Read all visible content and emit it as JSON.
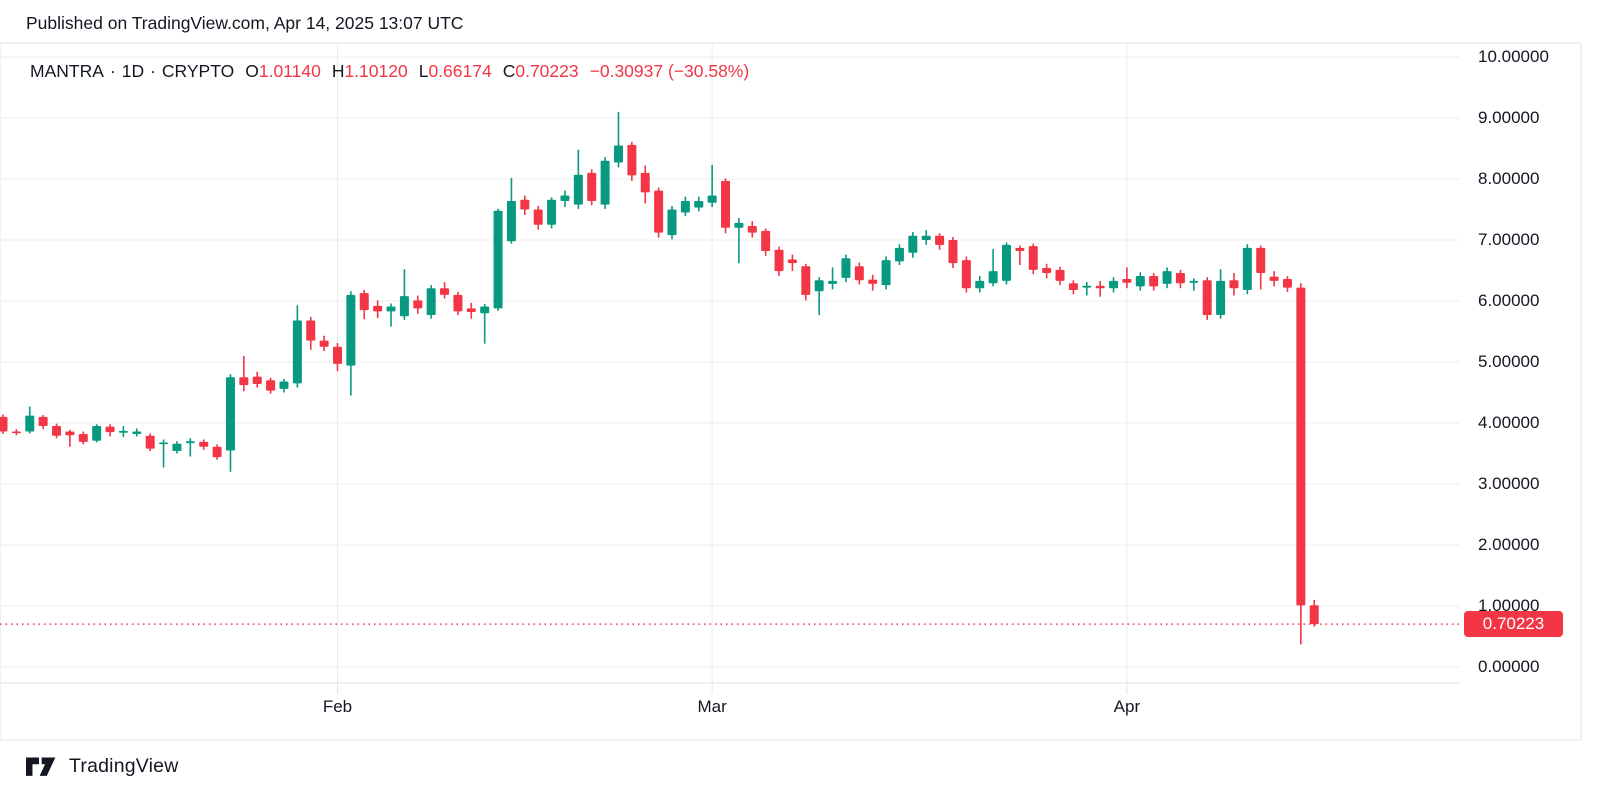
{
  "header": {
    "published_line": "Published on TradingView.com, Apr 14, 2025 13:07 UTC"
  },
  "legend": {
    "symbol": "MANTRA",
    "separator": "·",
    "interval": "1D",
    "exchange": "CRYPTO",
    "ohlc": [
      {
        "label": "O",
        "value": "1.01140"
      },
      {
        "label": "H",
        "value": "1.10120"
      },
      {
        "label": "L",
        "value": "0.66174"
      },
      {
        "label": "C",
        "value": "0.70223"
      }
    ],
    "change": "−0.30937 (−30.58%)"
  },
  "footer": {
    "brand": "TradingView"
  },
  "colors": {
    "up": "#089981",
    "down": "#F23645",
    "grid": "#ECECEC",
    "frame": "#E0E3EB",
    "text": "#131722",
    "price_label_bg": "#F23645",
    "price_label_text": "#FFFFFF"
  },
  "chart_data": {
    "type": "candlestick",
    "title": "MANTRA · 1D · CRYPTO",
    "interval": "1D",
    "legend_position": "top-left",
    "grid": true,
    "y_axis": {
      "min": 0,
      "max": 10,
      "tick_step": 1,
      "labels": [
        "10.00000",
        "9.00000",
        "8.00000",
        "7.00000",
        "6.00000",
        "5.00000",
        "4.00000",
        "3.00000",
        "2.00000",
        "1.00000",
        "0.00000"
      ]
    },
    "x_axis": {
      "months": [
        {
          "label": "Feb",
          "index": 25
        },
        {
          "label": "Mar",
          "index": 53
        },
        {
          "label": "Apr",
          "index": 84
        }
      ]
    },
    "price_line": {
      "value": 0.70223,
      "label": "0.70223",
      "style": "dotted"
    },
    "last_candle": {
      "open": 1.0114,
      "high": 1.1012,
      "low": 0.66174,
      "close": 0.70223,
      "change": -0.30937,
      "change_pct": -30.58
    },
    "candles": [
      [
        4.1,
        4.14,
        3.82,
        3.86
      ],
      [
        3.86,
        3.9,
        3.8,
        3.84
      ],
      [
        3.86,
        4.27,
        3.83,
        4.12
      ],
      [
        4.1,
        4.13,
        3.9,
        3.95
      ],
      [
        3.95,
        3.99,
        3.75,
        3.79
      ],
      [
        3.86,
        3.89,
        3.61,
        3.8
      ],
      [
        3.82,
        3.86,
        3.65,
        3.69
      ],
      [
        3.71,
        3.98,
        3.68,
        3.95
      ],
      [
        3.94,
        3.98,
        3.78,
        3.85
      ],
      [
        3.84,
        3.95,
        3.77,
        3.87
      ],
      [
        3.82,
        3.91,
        3.78,
        3.86
      ],
      [
        3.79,
        3.83,
        3.54,
        3.58
      ],
      [
        3.66,
        3.73,
        3.27,
        3.68
      ],
      [
        3.54,
        3.7,
        3.5,
        3.66
      ],
      [
        3.67,
        3.75,
        3.45,
        3.7
      ],
      [
        3.69,
        3.73,
        3.56,
        3.61
      ],
      [
        3.61,
        3.65,
        3.4,
        3.44
      ],
      [
        3.55,
        4.8,
        3.2,
        4.75
      ],
      [
        4.75,
        5.1,
        4.52,
        4.62
      ],
      [
        4.76,
        4.84,
        4.58,
        4.64
      ],
      [
        4.7,
        4.74,
        4.48,
        4.53
      ],
      [
        4.56,
        4.72,
        4.5,
        4.68
      ],
      [
        4.65,
        5.93,
        4.58,
        5.68
      ],
      [
        5.68,
        5.74,
        5.2,
        5.35
      ],
      [
        5.35,
        5.43,
        5.18,
        5.25
      ],
      [
        5.25,
        5.31,
        4.85,
        4.97
      ],
      [
        4.94,
        6.16,
        4.45,
        6.1
      ],
      [
        6.13,
        6.18,
        5.7,
        5.85
      ],
      [
        5.92,
        6.01,
        5.72,
        5.83
      ],
      [
        5.83,
        5.96,
        5.58,
        5.91
      ],
      [
        5.75,
        6.52,
        5.69,
        6.08
      ],
      [
        6.01,
        6.09,
        5.79,
        5.88
      ],
      [
        5.77,
        6.26,
        5.71,
        6.21
      ],
      [
        6.21,
        6.31,
        6.04,
        6.1
      ],
      [
        6.1,
        6.15,
        5.77,
        5.83
      ],
      [
        5.88,
        5.97,
        5.71,
        5.82
      ],
      [
        5.8,
        5.95,
        5.3,
        5.91
      ],
      [
        5.88,
        7.51,
        5.84,
        7.48
      ],
      [
        6.98,
        8.02,
        6.94,
        7.64
      ],
      [
        7.66,
        7.73,
        7.41,
        7.5
      ],
      [
        7.5,
        7.56,
        7.17,
        7.25
      ],
      [
        7.25,
        7.7,
        7.19,
        7.66
      ],
      [
        7.64,
        7.81,
        7.54,
        7.73
      ],
      [
        7.58,
        8.48,
        7.51,
        8.07
      ],
      [
        8.1,
        8.16,
        7.57,
        7.64
      ],
      [
        7.58,
        8.36,
        7.51,
        8.3
      ],
      [
        8.27,
        9.1,
        8.19,
        8.55
      ],
      [
        8.56,
        8.61,
        7.97,
        8.06
      ],
      [
        8.1,
        8.22,
        7.6,
        7.78
      ],
      [
        7.81,
        7.86,
        7.04,
        7.12
      ],
      [
        7.08,
        7.56,
        7.01,
        7.5
      ],
      [
        7.45,
        7.71,
        7.39,
        7.64
      ],
      [
        7.53,
        7.71,
        7.47,
        7.64
      ],
      [
        7.61,
        8.23,
        7.54,
        7.73
      ],
      [
        7.97,
        8.01,
        7.11,
        7.2
      ],
      [
        7.2,
        7.36,
        6.62,
        7.28
      ],
      [
        7.23,
        7.31,
        7.04,
        7.12
      ],
      [
        7.15,
        7.19,
        6.74,
        6.82
      ],
      [
        6.84,
        6.89,
        6.41,
        6.49
      ],
      [
        6.68,
        6.76,
        6.49,
        6.62
      ],
      [
        6.57,
        6.61,
        6.01,
        6.1
      ],
      [
        6.16,
        6.39,
        5.77,
        6.34
      ],
      [
        6.28,
        6.55,
        6.19,
        6.33
      ],
      [
        6.38,
        6.76,
        6.31,
        6.7
      ],
      [
        6.57,
        6.63,
        6.27,
        6.34
      ],
      [
        6.35,
        6.43,
        6.17,
        6.28
      ],
      [
        6.26,
        6.73,
        6.19,
        6.67
      ],
      [
        6.65,
        6.93,
        6.59,
        6.87
      ],
      [
        6.79,
        7.13,
        6.71,
        7.07
      ],
      [
        7.0,
        7.16,
        6.92,
        7.07
      ],
      [
        7.07,
        7.11,
        6.84,
        6.92
      ],
      [
        7.0,
        7.05,
        6.54,
        6.62
      ],
      [
        6.67,
        6.73,
        6.14,
        6.21
      ],
      [
        6.21,
        6.41,
        6.14,
        6.33
      ],
      [
        6.29,
        6.85,
        6.24,
        6.49
      ],
      [
        6.33,
        6.96,
        6.27,
        6.92
      ],
      [
        6.87,
        6.91,
        6.59,
        6.82
      ],
      [
        6.9,
        6.94,
        6.44,
        6.51
      ],
      [
        6.54,
        6.61,
        6.37,
        6.46
      ],
      [
        6.51,
        6.56,
        6.26,
        6.33
      ],
      [
        6.29,
        6.34,
        6.11,
        6.18
      ],
      [
        6.22,
        6.31,
        6.09,
        6.25
      ],
      [
        6.25,
        6.33,
        6.07,
        6.21
      ],
      [
        6.21,
        6.39,
        6.14,
        6.33
      ],
      [
        6.36,
        6.55,
        6.21,
        6.3
      ],
      [
        6.24,
        6.47,
        6.17,
        6.41
      ],
      [
        6.41,
        6.46,
        6.17,
        6.24
      ],
      [
        6.28,
        6.55,
        6.21,
        6.49
      ],
      [
        6.46,
        6.51,
        6.21,
        6.29
      ],
      [
        6.3,
        6.37,
        6.17,
        6.33
      ],
      [
        6.34,
        6.39,
        5.69,
        5.77
      ],
      [
        5.77,
        6.52,
        5.71,
        6.33
      ],
      [
        6.34,
        6.46,
        6.09,
        6.21
      ],
      [
        6.18,
        6.93,
        6.11,
        6.87
      ],
      [
        6.87,
        6.91,
        6.19,
        6.46
      ],
      [
        6.4,
        6.49,
        6.24,
        6.33
      ],
      [
        6.36,
        6.41,
        6.15,
        6.22
      ],
      [
        6.22,
        6.29,
        0.37,
        1.01
      ],
      [
        1.0114,
        1.1012,
        0.66174,
        0.70223
      ]
    ]
  }
}
